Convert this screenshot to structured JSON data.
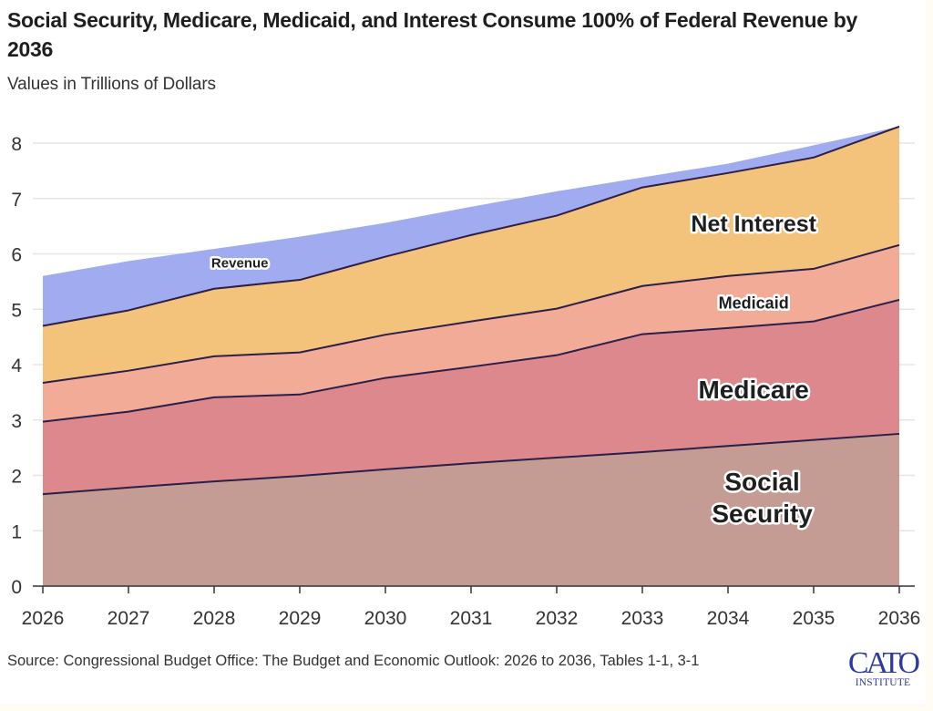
{
  "header": {
    "title": "Social Security, Medicare, Medicaid, and Interest Consume 100% of Federal Revenue by 2036",
    "subtitle": "Values in Trillions of Dollars"
  },
  "footer": {
    "source": "Source: Congressional Budget Office: The Budget and Economic Outlook: 2026 to 2036, Tables 1-1, 3-1",
    "logo_main": "CATO",
    "logo_sub": "INSTITUTE"
  },
  "chart_data": {
    "type": "area",
    "stacked": true,
    "title": "Social Security, Medicare, Medicaid, and Interest Consume 100% of Federal Revenue by 2036",
    "subtitle": "Values in Trillions of Dollars",
    "xlabel": "",
    "ylabel": "",
    "x": [
      2026,
      2027,
      2028,
      2029,
      2030,
      2031,
      2032,
      2033,
      2034,
      2035,
      2036
    ],
    "xticks": [
      "2026",
      "2027",
      "2028",
      "2029",
      "2030",
      "2031",
      "2032",
      "2033",
      "2034",
      "2035",
      "2036"
    ],
    "yticks": [
      0,
      1,
      2,
      3,
      4,
      5,
      6,
      7,
      8
    ],
    "ylim": [
      0,
      8.5
    ],
    "grid": true,
    "legend": "none (direct labels)",
    "series": [
      {
        "name": "Social Security",
        "label": "Social\nSecurity",
        "color": "#c49c94",
        "values": [
          1.66,
          1.78,
          1.89,
          1.99,
          2.11,
          2.22,
          2.32,
          2.42,
          2.53,
          2.64,
          2.75
        ],
        "label_at": [
          2034.4,
          1.6
        ],
        "label_size": "large"
      },
      {
        "name": "Medicare",
        "label": "Medicare",
        "color": "#dc888c",
        "values": [
          1.31,
          1.37,
          1.52,
          1.47,
          1.65,
          1.74,
          1.85,
          2.13,
          2.13,
          2.14,
          2.42
        ],
        "label_at": [
          2034.3,
          3.55
        ],
        "label_size": "large"
      },
      {
        "name": "Medicaid",
        "label": "Medicaid",
        "color": "#f1ab96",
        "values": [
          0.7,
          0.74,
          0.74,
          0.76,
          0.78,
          0.82,
          0.84,
          0.87,
          0.94,
          0.95,
          0.99
        ],
        "label_at": [
          2034.3,
          5.12
        ],
        "label_size": "small"
      },
      {
        "name": "Net Interest",
        "label": "Net Interest",
        "color": "#f4c37b",
        "values": [
          1.03,
          1.09,
          1.22,
          1.31,
          1.41,
          1.56,
          1.68,
          1.78,
          1.86,
          2.01,
          2.14
        ],
        "label_at": [
          2034.3,
          6.55
        ],
        "label_size": "medium"
      }
    ],
    "revenue": {
      "name": "Revenue",
      "label": "Revenue",
      "color": "#a1abf0",
      "values": [
        5.6,
        5.87,
        6.09,
        6.31,
        6.56,
        6.85,
        7.13,
        7.38,
        7.63,
        7.96,
        8.3
      ],
      "label_at": [
        2028.3,
        5.85
      ]
    },
    "line_color": "#2a1f4a"
  }
}
